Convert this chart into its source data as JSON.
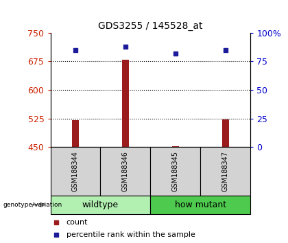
{
  "title": "GDS3255 / 145528_at",
  "samples": [
    "GSM188344",
    "GSM188346",
    "GSM188345",
    "GSM188347"
  ],
  "group_labels": [
    "wildtype",
    "how mutant"
  ],
  "group_colors": [
    "#b2f0b2",
    "#4ecb4e"
  ],
  "counts": [
    521,
    680,
    453,
    523
  ],
  "percentiles": [
    85,
    88,
    82,
    85
  ],
  "ylim_left": [
    450,
    750
  ],
  "ylim_right": [
    0,
    100
  ],
  "yticks_left": [
    450,
    525,
    600,
    675,
    750
  ],
  "yticks_right": [
    0,
    25,
    50,
    75,
    100
  ],
  "ytick_labels_right": [
    "0",
    "25",
    "50",
    "75",
    "100%"
  ],
  "bar_color": "#9b1c1c",
  "square_color": "#1c1c9b",
  "left_tick_color": "#cc2200",
  "right_tick_color": "#0000cc",
  "title_fontsize": 10,
  "sample_label_fontsize": 7,
  "group_label_fontsize": 9,
  "legend_fontsize": 8
}
